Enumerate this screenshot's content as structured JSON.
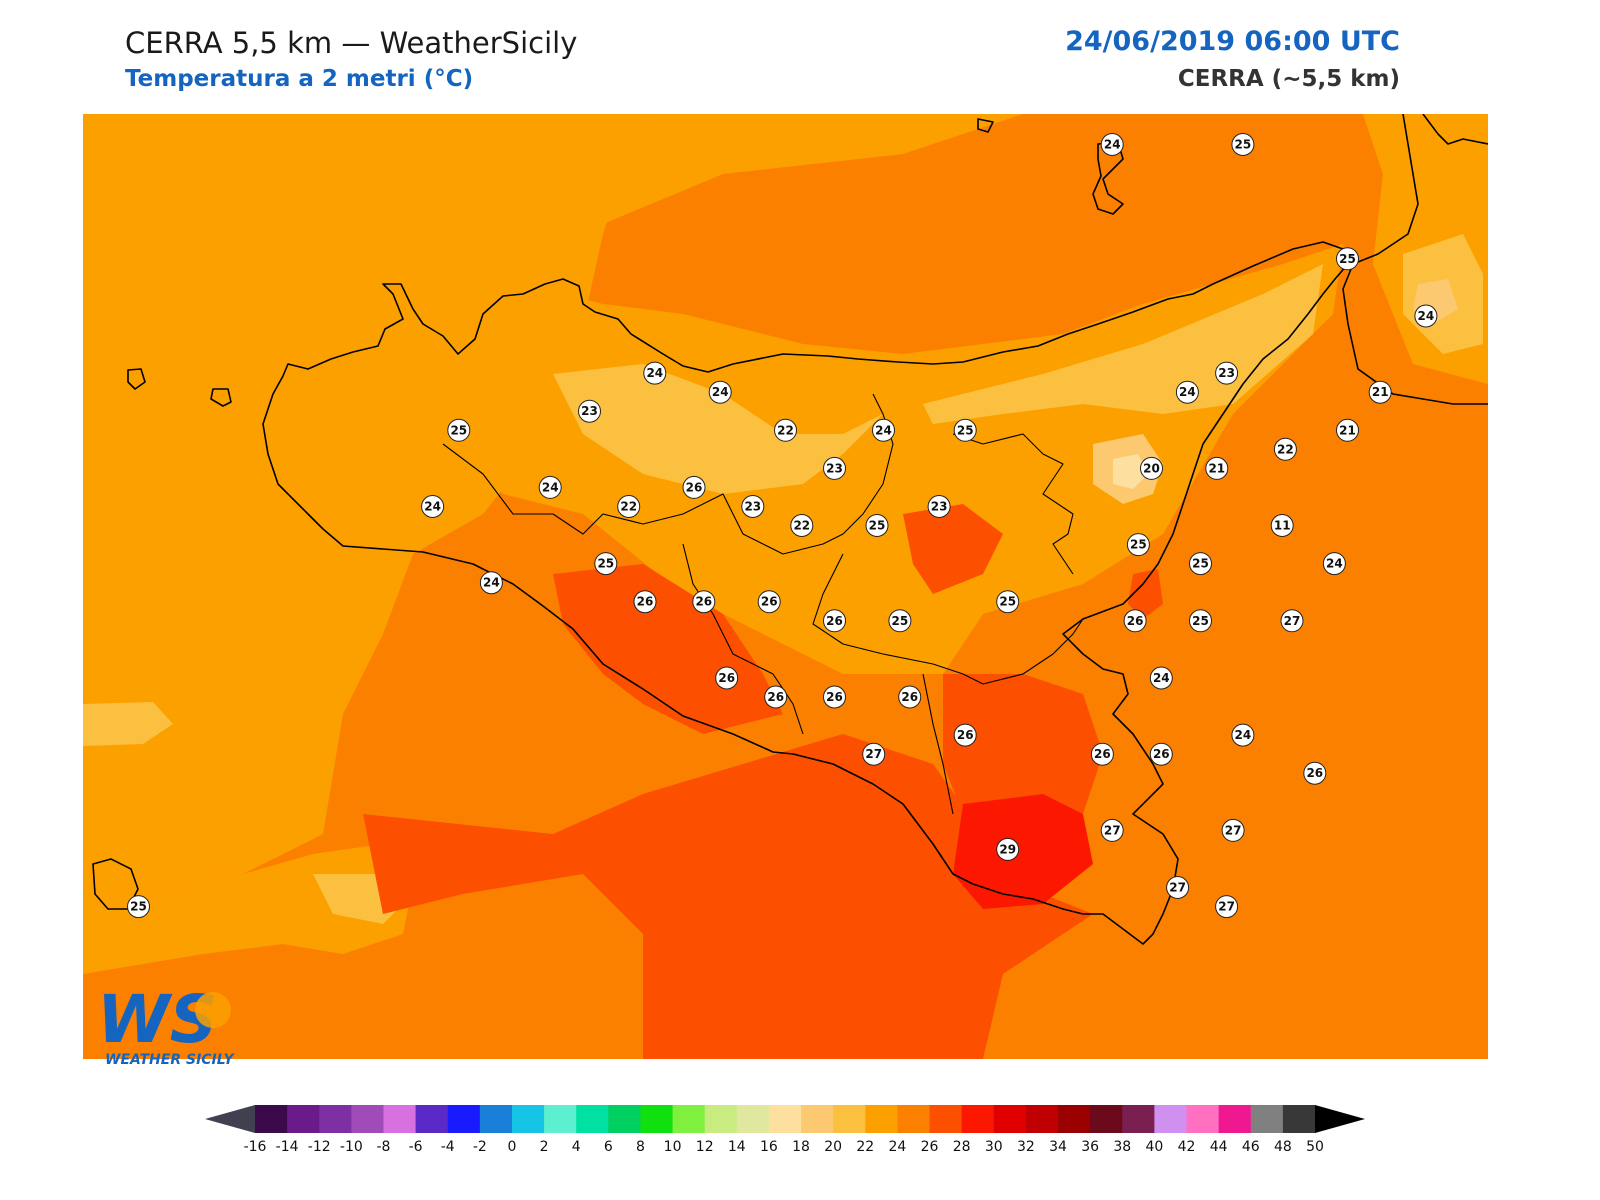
{
  "header": {
    "title": "CERRA 5,5 km — WeatherSicily",
    "subtitle": "Temperatura a 2 metri (°C)",
    "datetime": "24/06/2019 06:00 UTC",
    "model": "CERRA (~5,5 km)"
  },
  "logo": {
    "letters": "WS",
    "text": "WEATHER SICILY"
  },
  "colorbar": {
    "ticks": [
      -16,
      -14,
      -12,
      -10,
      -8,
      -6,
      -4,
      -2,
      0,
      2,
      4,
      6,
      8,
      10,
      12,
      14,
      16,
      18,
      20,
      22,
      24,
      26,
      28,
      30,
      32,
      34,
      36,
      38,
      40,
      42,
      44,
      46,
      48,
      50
    ],
    "colors": [
      "#3b0a4a",
      "#6a1a8a",
      "#7e2fa3",
      "#a04bb8",
      "#d870e0",
      "#5a2ac8",
      "#1a1aff",
      "#1a7fd8",
      "#16c4e6",
      "#5cf0d0",
      "#00e0a0",
      "#00d060",
      "#10e010",
      "#80f040",
      "#c8ec80",
      "#e0e8a0",
      "#fde0a0",
      "#fcc870",
      "#fcc040",
      "#fca000",
      "#fc8000",
      "#fc5000",
      "#fc1800",
      "#e00000",
      "#c00000",
      "#9a0000",
      "#6a0a1a",
      "#7a2050",
      "#d090f0",
      "#ff70c0",
      "#f01890",
      "#808080",
      "#383838"
    ],
    "under_color": "#404050",
    "over_color": "#000000"
  },
  "stations": [
    {
      "label": "24",
      "lon": 14.9,
      "lat": 38.85
    },
    {
      "label": "25",
      "lon": 15.3,
      "lat": 38.85
    },
    {
      "label": "25",
      "lon": 15.62,
      "lat": 38.55
    },
    {
      "label": "24",
      "lon": 15.86,
      "lat": 38.4
    },
    {
      "label": "23",
      "lon": 15.25,
      "lat": 38.25
    },
    {
      "label": "24",
      "lon": 15.13,
      "lat": 38.2
    },
    {
      "label": "21",
      "lon": 15.72,
      "lat": 38.2
    },
    {
      "label": "21",
      "lon": 15.62,
      "lat": 38.1
    },
    {
      "label": "22",
      "lon": 15.43,
      "lat": 38.05
    },
    {
      "label": "20",
      "lon": 15.02,
      "lat": 38.0
    },
    {
      "label": "21",
      "lon": 15.22,
      "lat": 38.0
    },
    {
      "label": "11",
      "lon": 15.42,
      "lat": 37.85
    },
    {
      "label": "24",
      "lon": 15.58,
      "lat": 37.75
    },
    {
      "label": "24",
      "lon": 13.5,
      "lat": 38.25
    },
    {
      "label": "24",
      "lon": 13.7,
      "lat": 38.2
    },
    {
      "label": "23",
      "lon": 13.3,
      "lat": 38.15
    },
    {
      "label": "25",
      "lon": 12.9,
      "lat": 38.1
    },
    {
      "label": "22",
      "lon": 13.9,
      "lat": 38.1
    },
    {
      "label": "24",
      "lon": 14.2,
      "lat": 38.1
    },
    {
      "label": "25",
      "lon": 14.45,
      "lat": 38.1
    },
    {
      "label": "23",
      "lon": 14.05,
      "lat": 38.0
    },
    {
      "label": "24",
      "lon": 13.18,
      "lat": 37.95
    },
    {
      "label": "26",
      "lon": 13.62,
      "lat": 37.95
    },
    {
      "label": "24",
      "lon": 12.82,
      "lat": 37.9
    },
    {
      "label": "22",
      "lon": 13.42,
      "lat": 37.9
    },
    {
      "label": "23",
      "lon": 13.8,
      "lat": 37.9
    },
    {
      "label": "22",
      "lon": 13.95,
      "lat": 37.85
    },
    {
      "label": "25",
      "lon": 14.18,
      "lat": 37.85
    },
    {
      "label": "23",
      "lon": 14.37,
      "lat": 37.9
    },
    {
      "label": "25",
      "lon": 14.98,
      "lat": 37.8
    },
    {
      "label": "25",
      "lon": 15.17,
      "lat": 37.75
    },
    {
      "label": "25",
      "lon": 13.35,
      "lat": 37.75
    },
    {
      "label": "24",
      "lon": 13.0,
      "lat": 37.7
    },
    {
      "label": "26",
      "lon": 13.47,
      "lat": 37.65
    },
    {
      "label": "26",
      "lon": 13.65,
      "lat": 37.65
    },
    {
      "label": "26",
      "lon": 13.85,
      "lat": 37.65
    },
    {
      "label": "25",
      "lon": 14.58,
      "lat": 37.65
    },
    {
      "label": "26",
      "lon": 14.05,
      "lat": 37.6
    },
    {
      "label": "25",
      "lon": 14.25,
      "lat": 37.6
    },
    {
      "label": "26",
      "lon": 14.97,
      "lat": 37.6
    },
    {
      "label": "25",
      "lon": 15.17,
      "lat": 37.6
    },
    {
      "label": "27",
      "lon": 15.45,
      "lat": 37.6
    },
    {
      "label": "24",
      "lon": 15.05,
      "lat": 37.45
    },
    {
      "label": "26",
      "lon": 13.72,
      "lat": 37.45
    },
    {
      "label": "26",
      "lon": 13.87,
      "lat": 37.4
    },
    {
      "label": "26",
      "lon": 14.05,
      "lat": 37.4
    },
    {
      "label": "26",
      "lon": 14.28,
      "lat": 37.4
    },
    {
      "label": "24",
      "lon": 15.3,
      "lat": 37.3
    },
    {
      "label": "26",
      "lon": 14.45,
      "lat": 37.3
    },
    {
      "label": "26",
      "lon": 14.87,
      "lat": 37.25
    },
    {
      "label": "26",
      "lon": 15.05,
      "lat": 37.25
    },
    {
      "label": "27",
      "lon": 14.17,
      "lat": 37.25
    },
    {
      "label": "26",
      "lon": 15.52,
      "lat": 37.2
    },
    {
      "label": "27",
      "lon": 14.9,
      "lat": 37.05
    },
    {
      "label": "27",
      "lon": 15.27,
      "lat": 37.05
    },
    {
      "label": "29",
      "lon": 14.58,
      "lat": 37.0
    },
    {
      "label": "27",
      "lon": 15.1,
      "lat": 36.9
    },
    {
      "label": "27",
      "lon": 15.25,
      "lat": 36.85
    },
    {
      "label": "25",
      "lon": 11.92,
      "lat": 36.85
    }
  ]
}
